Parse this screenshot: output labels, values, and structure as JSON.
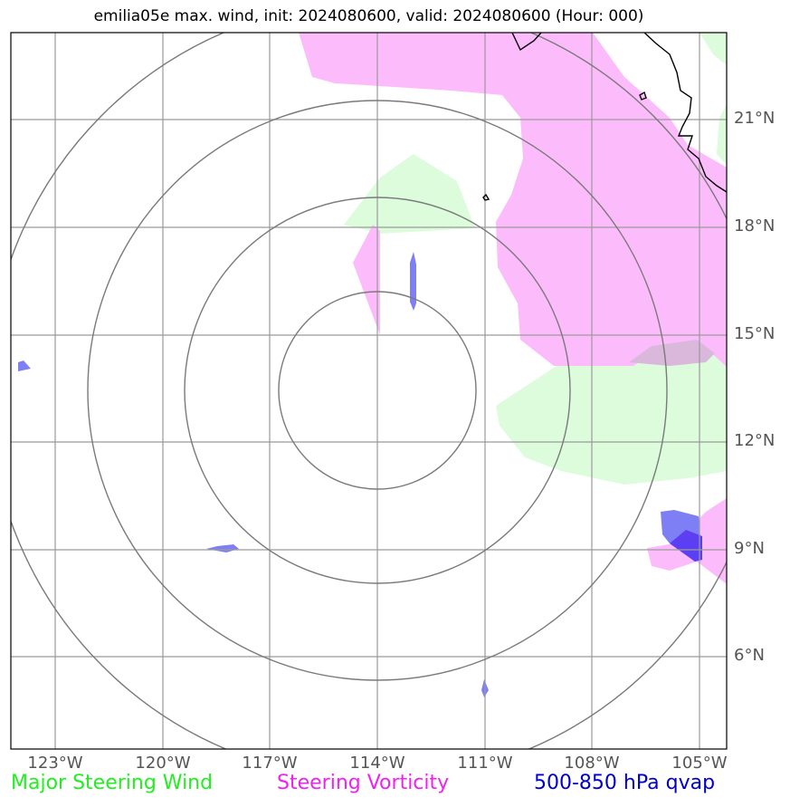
{
  "title": "emilia05e max. wind, init: 2024080600, valid: 2024080600 (Hour: 000)",
  "lat_labels": [
    "21°N",
    "18°N",
    "15°N",
    "12°N",
    "9°N",
    "6°N"
  ],
  "lon_labels": [
    "123°W",
    "120°W",
    "117°W",
    "114°W",
    "111°W",
    "108°W",
    "105°W"
  ],
  "legend": {
    "steering_wind": "Major Steering Wind",
    "steering_vorticity": "Steering Vorticity",
    "qvap": "500-850 hPa qvap"
  },
  "colors": {
    "steering_wind": "#22ee22",
    "steering_vorticity": "#ee22ee",
    "qvap": "#0000cc",
    "wind_fill": "#dcfcdc",
    "vorticity_fill": "#fcbcfc",
    "qvap_fill": "#7f7ff5",
    "grid": "#9a9a9a",
    "range_rings": "#7a7a7a"
  },
  "map": {
    "lon_range": [
      -124.2,
      -104.2
    ],
    "lat_range": [
      3.3,
      23.3
    ],
    "storm_center": {
      "lon": -114.0,
      "lat": 13.5
    },
    "range_rings": "concentric circles around storm center"
  }
}
